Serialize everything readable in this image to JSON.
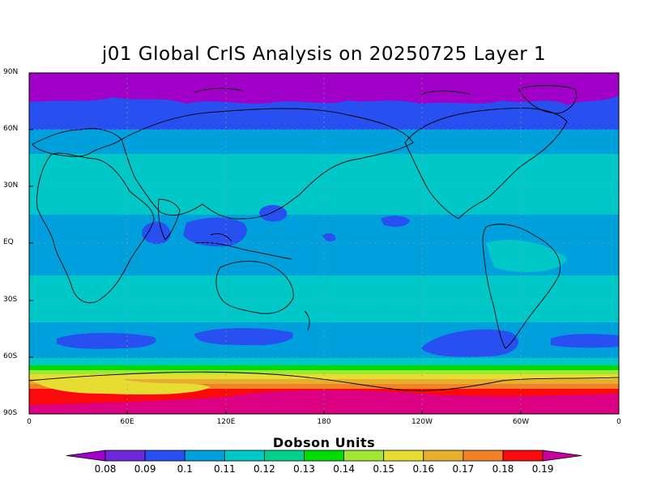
{
  "title": "j01 Global CrIS Analysis on 20250725 Layer 1",
  "lat_labels": [
    "90N",
    "60N",
    "30N",
    "EQ",
    "30S",
    "60S",
    "90S"
  ],
  "lon_labels": [
    "0",
    "60E",
    "120E",
    "180",
    "120W",
    "60W",
    "0"
  ],
  "colorbar": {
    "title": "Dobson Units",
    "ticks": [
      "0.08",
      "0.09",
      "0.1",
      "0.11",
      "0.12",
      "0.13",
      "0.14",
      "0.15",
      "0.16",
      "0.17",
      "0.18",
      "0.19"
    ],
    "colors": [
      "#a000c8",
      "#6e28dc",
      "#2850f0",
      "#00a0dc",
      "#00c8c8",
      "#00d28c",
      "#00dc00",
      "#a0e632",
      "#e6dc32",
      "#e6af2d",
      "#f08228",
      "#fa0a0a",
      "#dc0082",
      "#c800a0"
    ]
  },
  "chart_data": {
    "type": "heatmap",
    "title": "j01 Global CrIS Analysis on 20250725 Layer 1",
    "variable_units": "Dobson Units",
    "lon_range": [
      0,
      360
    ],
    "lat_range": [
      -90,
      90
    ],
    "levels": [
      0.08,
      0.09,
      0.1,
      0.11,
      0.12,
      0.13,
      0.14,
      0.15,
      0.16,
      0.17,
      0.18,
      0.19
    ],
    "zonal_bands": [
      {
        "lat": [
          77,
          90
        ],
        "value": 0.085
      },
      {
        "lat": [
          70,
          77
        ],
        "value": 0.095
      },
      {
        "lat": [
          57,
          70
        ],
        "value": 0.095
      },
      {
        "lat": [
          44,
          57
        ],
        "value": 0.105
      },
      {
        "lat": [
          22,
          44
        ],
        "value": 0.115
      },
      {
        "lat": [
          -20,
          22
        ],
        "value": 0.105
      },
      {
        "lat": [
          -40,
          -20
        ],
        "value": 0.115
      },
      {
        "lat": [
          -45,
          -40
        ],
        "value": 0.105
      },
      {
        "lat": [
          -55,
          -45
        ],
        "value": 0.105
      },
      {
        "lat": [
          -60,
          -55
        ],
        "value": 0.115
      },
      {
        "lat": [
          -63,
          -60
        ],
        "value": 0.125
      },
      {
        "lat": [
          -66,
          -63
        ],
        "value": 0.135
      },
      {
        "lat": [
          -68,
          -66
        ],
        "value": 0.145
      },
      {
        "lat": [
          -70,
          -68
        ],
        "value": 0.155
      },
      {
        "lat": [
          -73,
          -70
        ],
        "value": 0.165
      },
      {
        "lat": [
          -76,
          -73
        ],
        "value": 0.175
      },
      {
        "lat": [
          -78,
          -76
        ],
        "value": 0.185
      },
      {
        "lat": [
          -85,
          -78
        ],
        "value": 0.19
      },
      {
        "lat": [
          -90,
          -85
        ],
        "value": 0.19
      }
    ],
    "grid": true
  }
}
